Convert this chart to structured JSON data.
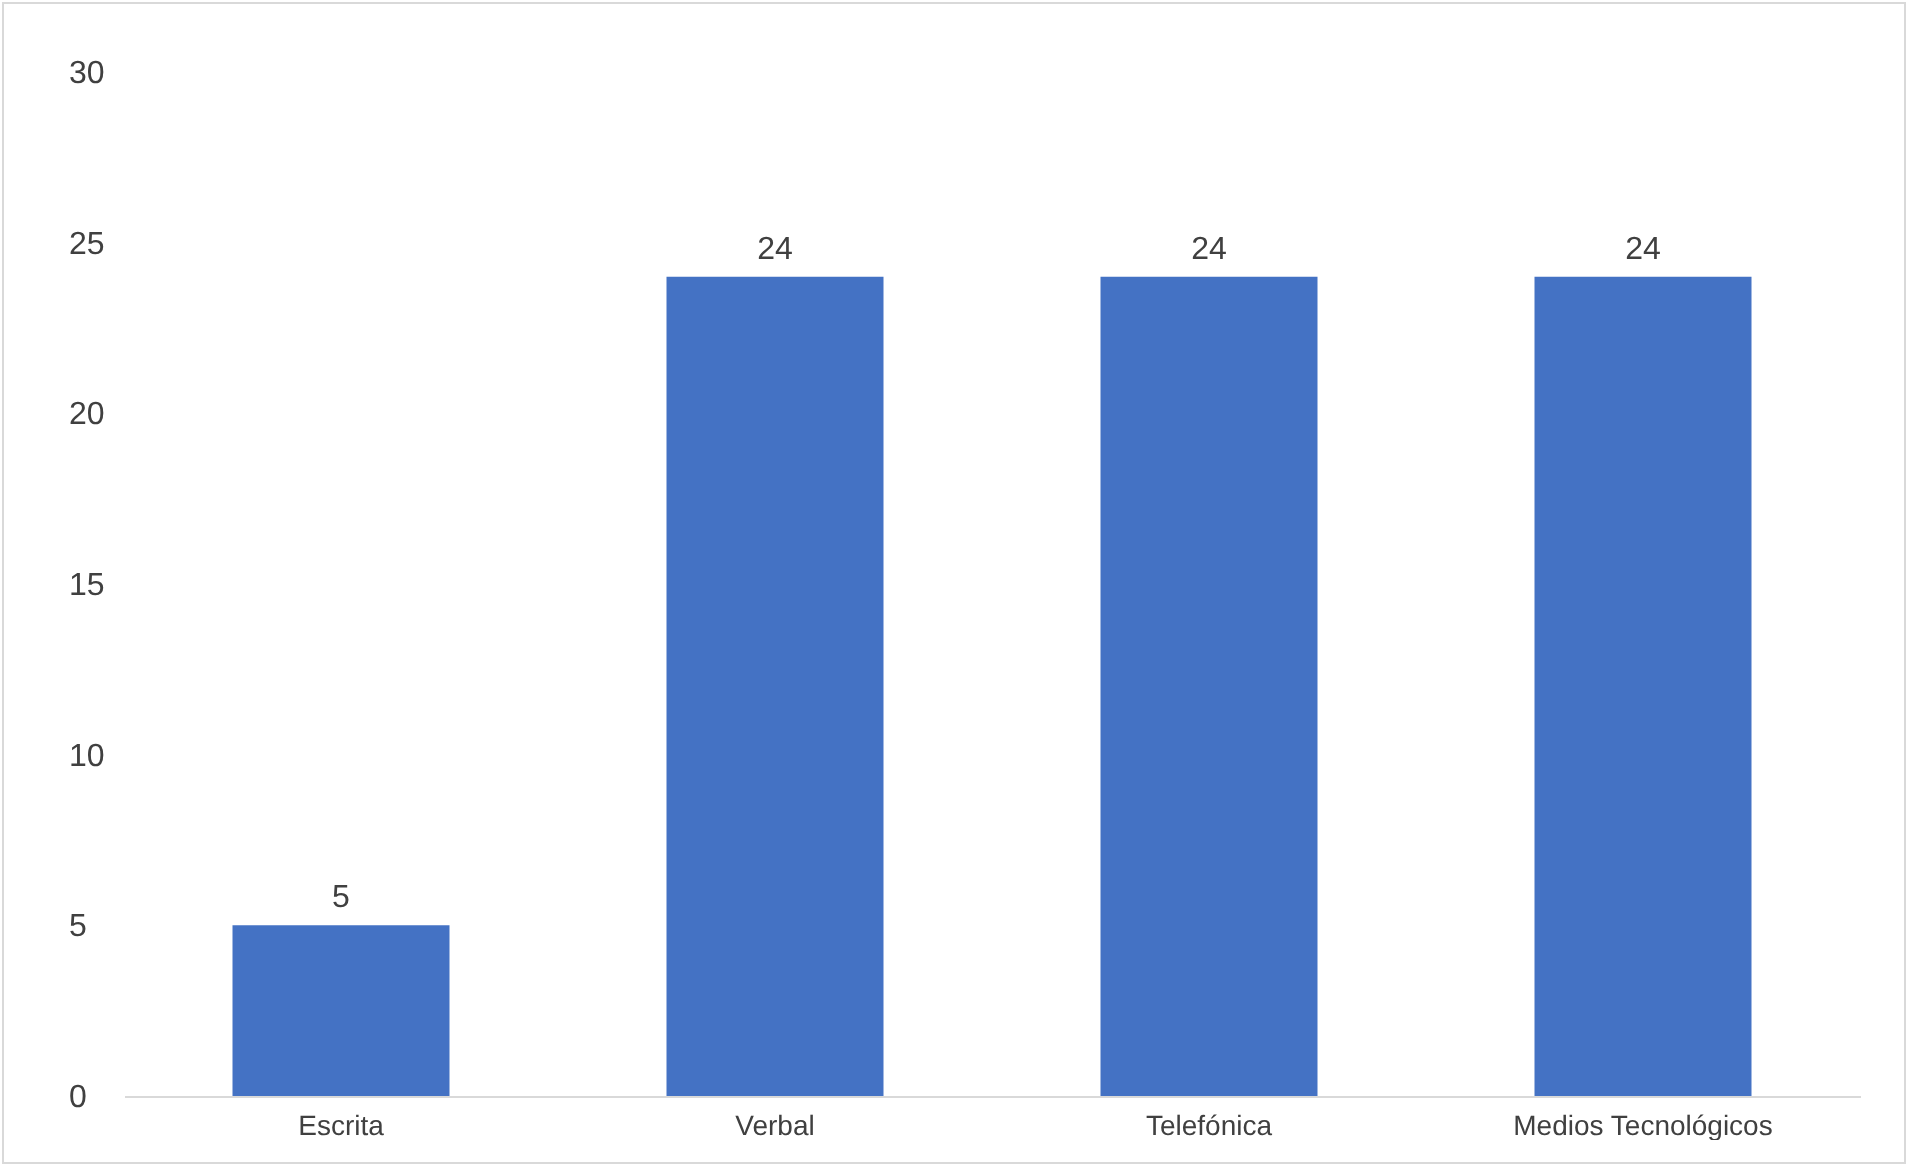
{
  "chart_data": {
    "type": "bar",
    "categories": [
      "Escrita",
      "Verbal",
      "Telefónica",
      "Medios Tecnológicos"
    ],
    "values": [
      5,
      24,
      24,
      24
    ],
    "color": "#4472c4",
    "ylim": [
      0,
      30
    ],
    "yticks": [
      0,
      5,
      10,
      15,
      20,
      25,
      30
    ],
    "grid": false,
    "data_labels": true
  }
}
